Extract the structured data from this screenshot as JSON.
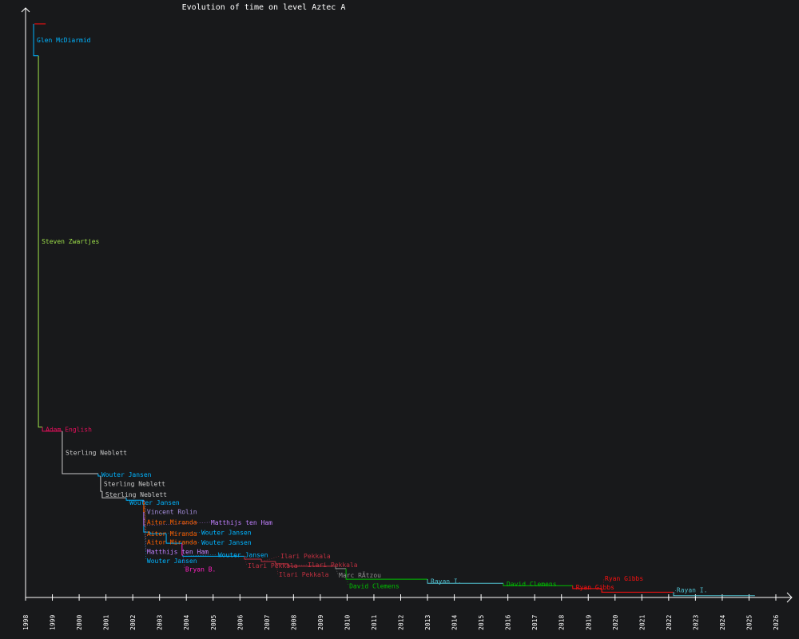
{
  "chart_data": {
    "type": "line",
    "title": "Evolution of time on level Aztec A",
    "xlabel": "",
    "ylabel": "",
    "xlim": [
      1998,
      2026
    ],
    "ylim": [
      0,
      100
    ],
    "y_units": "relative time (axis unlabeled)",
    "grid": false,
    "x_ticks": [
      "1998",
      "1999",
      "2000",
      "2001",
      "2002",
      "2003",
      "2004",
      "2005",
      "2006",
      "2007",
      "2008",
      "2009",
      "2010",
      "2011",
      "2012",
      "2013",
      "2014",
      "2015",
      "2016",
      "2017",
      "2018",
      "2019",
      "2020",
      "2021",
      "2022",
      "2023",
      "2024",
      "2025",
      "2026"
    ],
    "players": {
      "Glen McDiarmid": "#00b4ff",
      "Steven Zwartjes": "#9ee04a",
      "Adam English": "#e0105a",
      "Sterling Neblett": "#c8c8c8",
      "Wouter Jansen": "#00b4ff",
      "Vincent Rolin": "#a890e0",
      "Aitor Miranda": "#ff6000",
      "Matthijs ten Ham": "#c080ff",
      "Bryan B.": "#ff20c0",
      "Ilari Pekkala": "#c03040",
      "Marc RÃtzou": "#909090",
      "David Clemens": "#00c000",
      "Rayan I.": "#50c0d0",
      "Ryan Gibbs": "#ff1010",
      "": "#ff1010"
    },
    "records": [
      {
        "player": "",
        "start": 1998.33,
        "end": 1998.75,
        "value": 97.3
      },
      {
        "player": "Glen McDiarmid",
        "start": 1998.3,
        "end": 1998.48,
        "value": 91.9
      },
      {
        "player": "Steven Zwartjes",
        "start": 1998.48,
        "end": 1998.63,
        "value": 28.9
      },
      {
        "player": "Adam English",
        "start": 1998.63,
        "end": 1999.37,
        "value": 28.2
      },
      {
        "player": "Sterling Neblett",
        "start": 1999.37,
        "end": 2000.71,
        "value": 21.0
      },
      {
        "player": "Wouter Jansen",
        "start": 2000.71,
        "end": 2000.8,
        "value": 20.6
      },
      {
        "player": "Sterling Neblett",
        "start": 2000.8,
        "end": 2000.86,
        "value": 18.0
      },
      {
        "player": "Sterling Neblett",
        "start": 2000.86,
        "end": 2001.76,
        "value": 16.9
      },
      {
        "player": "Wouter Jansen",
        "start": 2001.76,
        "end": 2002.41,
        "value": 16.5
      },
      {
        "player": "Vincent Rolin",
        "start": 2002.41,
        "end": 2002.41,
        "value": 16.3
      },
      {
        "player": "Aitor Miranda",
        "start": 2002.41,
        "end": 2002.41,
        "value": 15.9
      },
      {
        "player": "Aitor Miranda",
        "start": 2002.41,
        "end": 2002.41,
        "value": 15.2
      },
      {
        "player": "Aitor Miranda",
        "start": 2002.41,
        "end": 2002.41,
        "value": 14.5
      },
      {
        "player": "Matthijs ten Ham",
        "start": 2002.41,
        "end": 2002.41,
        "value": 13.3
      },
      {
        "player": "Matthijs ten Ham",
        "start": 2002.41,
        "end": 2002.41,
        "value": 12.2
      },
      {
        "player": "Wouter Jansen",
        "start": 2002.41,
        "end": 2002.65,
        "value": 11.1
      },
      {
        "player": "Wouter Jansen",
        "start": 2002.65,
        "end": 2003.25,
        "value": 10.8
      },
      {
        "player": "Wouter Jansen",
        "start": 2003.25,
        "end": 2003.84,
        "value": 9.2
      },
      {
        "player": "Bryan B.",
        "start": 2003.84,
        "end": 2003.87,
        "value": 7.2
      },
      {
        "player": "Wouter Jansen",
        "start": 2003.87,
        "end": 2006.17,
        "value": 7.0
      },
      {
        "player": "Ilari Pekkala",
        "start": 2006.17,
        "end": 2006.8,
        "value": 6.5
      },
      {
        "player": "Ilari Pekkala",
        "start": 2006.8,
        "end": 2007.33,
        "value": 6.1
      },
      {
        "player": "Ilari Pekkala",
        "start": 2007.33,
        "end": 2007.81,
        "value": 5.7
      },
      {
        "player": "Ilari Pekkala",
        "start": 2007.81,
        "end": 2009.57,
        "value": 5.3
      },
      {
        "player": "Marc RÃtzou",
        "start": 2009.57,
        "end": 2009.96,
        "value": 4.9
      },
      {
        "player": "David Clemens",
        "start": 2009.96,
        "end": 2013.0,
        "value": 3.1
      },
      {
        "player": "Rayan I.",
        "start": 2013.0,
        "end": 2015.83,
        "value": 2.4
      },
      {
        "player": "David Clemens",
        "start": 2015.83,
        "end": 2018.42,
        "value": 2.0
      },
      {
        "player": "Ryan Gibbs",
        "start": 2018.42,
        "end": 2019.5,
        "value": 1.5
      },
      {
        "player": "Ryan Gibbs",
        "start": 2019.5,
        "end": 2022.18,
        "value": 0.9
      },
      {
        "player": "Rayan I.",
        "start": 2022.18,
        "end": 2025.22,
        "value": 0.3
      }
    ]
  }
}
